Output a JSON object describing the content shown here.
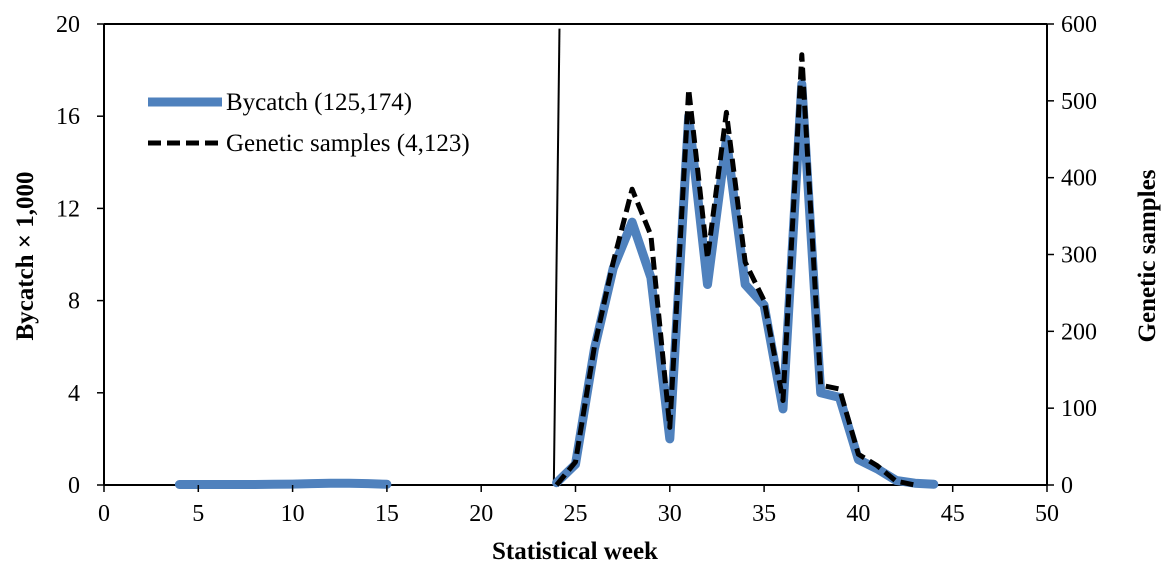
{
  "chart_data": {
    "type": "line",
    "xlabel": "Statistical week",
    "ylabel": "Bycatch × 1,000",
    "y2label": "Genetic samples",
    "xlim": [
      0,
      50
    ],
    "ylim": [
      0,
      20
    ],
    "y2lim": [
      0,
      600
    ],
    "xticks": [
      0,
      5,
      10,
      15,
      20,
      25,
      30,
      35,
      40,
      45,
      50
    ],
    "yticks": [
      0,
      4,
      8,
      12,
      16,
      20
    ],
    "y2ticks": [
      0,
      100,
      200,
      300,
      400,
      500,
      600
    ],
    "grid": false,
    "legend_position": "top-left",
    "series": [
      {
        "name": "Bycatch (125,174)",
        "axis": "left",
        "style": "solid",
        "color": "#4f81bd",
        "x": [
          4,
          5,
          6,
          7,
          8,
          9,
          10,
          11,
          12,
          13,
          14,
          15,
          24,
          25,
          26,
          27,
          28,
          29,
          30,
          31,
          32,
          33,
          34,
          35,
          36,
          37,
          38,
          39,
          40,
          41,
          42,
          43,
          44
        ],
        "values": [
          0.02,
          0.02,
          0.02,
          0.02,
          0.02,
          0.03,
          0.04,
          0.06,
          0.08,
          0.08,
          0.06,
          0.03,
          0.1,
          0.9,
          5.9,
          9.4,
          11.4,
          9.0,
          2.0,
          16.0,
          8.7,
          15.0,
          8.7,
          7.8,
          3.3,
          17.4,
          4.0,
          3.8,
          1.1,
          0.7,
          0.2,
          0.08,
          0.03
        ]
      },
      {
        "name": "Genetic samples (4,123)",
        "axis": "right",
        "style": "dashed",
        "color": "#000000",
        "x": [
          24,
          25,
          26,
          27,
          28,
          29,
          30,
          31,
          32,
          33,
          34,
          35,
          36,
          37,
          38,
          39,
          40,
          41,
          42,
          43
        ],
        "values": [
          0,
          30,
          180,
          290,
          385,
          325,
          75,
          515,
          295,
          485,
          290,
          240,
          110,
          560,
          130,
          125,
          40,
          25,
          5,
          0
        ]
      }
    ]
  }
}
